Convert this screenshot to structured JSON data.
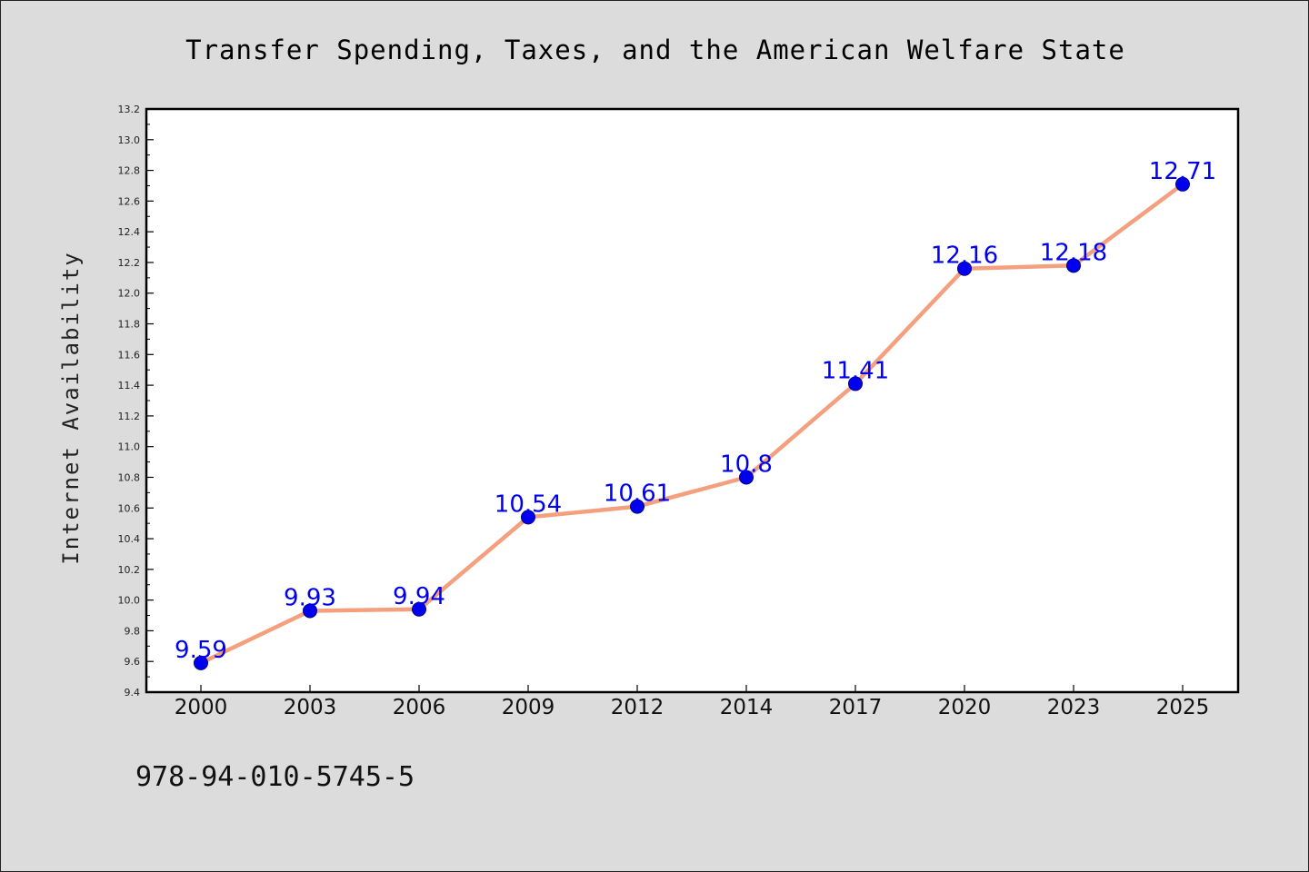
{
  "chart_data": {
    "type": "line",
    "title": "Transfer Spending, Taxes, and the American Welfare State",
    "xlabel": "",
    "ylabel": "Internet Availability",
    "categories": [
      "2000",
      "2003",
      "2006",
      "2009",
      "2012",
      "2014",
      "2017",
      "2020",
      "2023",
      "2025"
    ],
    "values": [
      9.59,
      9.93,
      9.94,
      10.54,
      10.61,
      10.8,
      11.41,
      12.16,
      12.18,
      12.71
    ],
    "data_labels": [
      "9.59",
      "9.93",
      "9.94",
      "10.54",
      "10.61",
      "10.8",
      "11.41",
      "12.16",
      "12.18",
      "12.71"
    ],
    "ylim": [
      9.4,
      13.2
    ],
    "yticks": [
      "9.4",
      "9.6",
      "9.8",
      "10.0",
      "10.2",
      "10.4",
      "10.6",
      "10.8",
      "11.0",
      "11.2",
      "11.4",
      "11.6",
      "11.8",
      "12.0",
      "12.2",
      "12.4",
      "12.6",
      "12.8",
      "13.0",
      "13.2"
    ],
    "grid": false,
    "legend": "none",
    "colors": {
      "line": "#f4a07e",
      "marker": "#0000ee",
      "label": "#0000ee",
      "background": "#dcdcdc",
      "plot_background": "#ffffff"
    }
  },
  "footer": {
    "code": "978-94-010-5745-5"
  }
}
